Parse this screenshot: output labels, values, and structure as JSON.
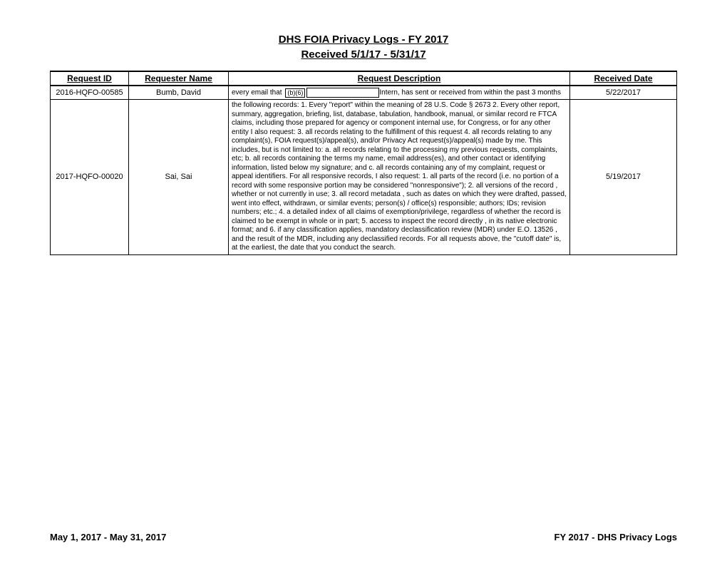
{
  "header": {
    "title_line1": "DHS FOIA Privacy Logs - FY 2017",
    "title_line2": "Received 5/1/17 - 5/31/17"
  },
  "table": {
    "columns": [
      "Request ID",
      "Requester Name",
      "Request Description",
      "Received Date"
    ],
    "rows": [
      {
        "id": "2016-HQFO-00585",
        "name": "Bumb, David",
        "desc_prefix": "every email that ",
        "redaction_label": "(b)(6)",
        "desc_mid": "Intern, has sent",
        "desc_suffix": "or received from within the past 3 months",
        "date": "5/22/2017"
      },
      {
        "id": "2017-HQFO-00020",
        "name": "Sai, Sai",
        "desc": "the following records: 1. Every \"report\" within the meaning of 28 U.S. Code § 2673 2. Every other report, summary, aggregation, briefing, list, database, tabulation, handbook, manual, or similar record re FTCA claims, including those prepared for agency or component internal use, for Congress, or for any other entity I also request: 3. all records relating to the fulfillment of this request 4. all records relating to any complaint(s), FOIA request(s)/appeal(s), and/or Privacy Act request(s)/appeal(s) made by me. This includes, but is not limited to: a. all records relating to the processing my previous requests, complaints, etc; b. all records containing the terms my name, email address(es), and other contact or identifying information, listed below my signature; and c. all records containing any of my complaint, request or appeal identifiers. For all responsive records, I also request: 1. all parts of the record (i.e. no portion of a record with some responsive portion may be considered \"nonresponsive\"); 2. all versions of the record , whether or not currently in use; 3. all record metadata , such as dates on which they were drafted, passed, went into effect, withdrawn, or similar events; person(s) / office(s) responsible; authors; IDs; revision numbers; etc.; 4. a detailed index of all claims of exemption/privilege, regardless of whether the record is claimed to be exempt in whole or in part; 5. access to inspect the record directly , in its native electronic format; and 6. if any classification applies, mandatory declassification review (MDR) under E.O. 13526 , and the result of the MDR, including any declassified records. For all requests above, the \"cutoff date\" is, at the earliest, the date that you conduct the search.",
        "date": "5/19/2017"
      }
    ]
  },
  "footer": {
    "left": "May 1, 2017 - May 31, 2017",
    "right": "FY 2017 - DHS Privacy Logs"
  }
}
